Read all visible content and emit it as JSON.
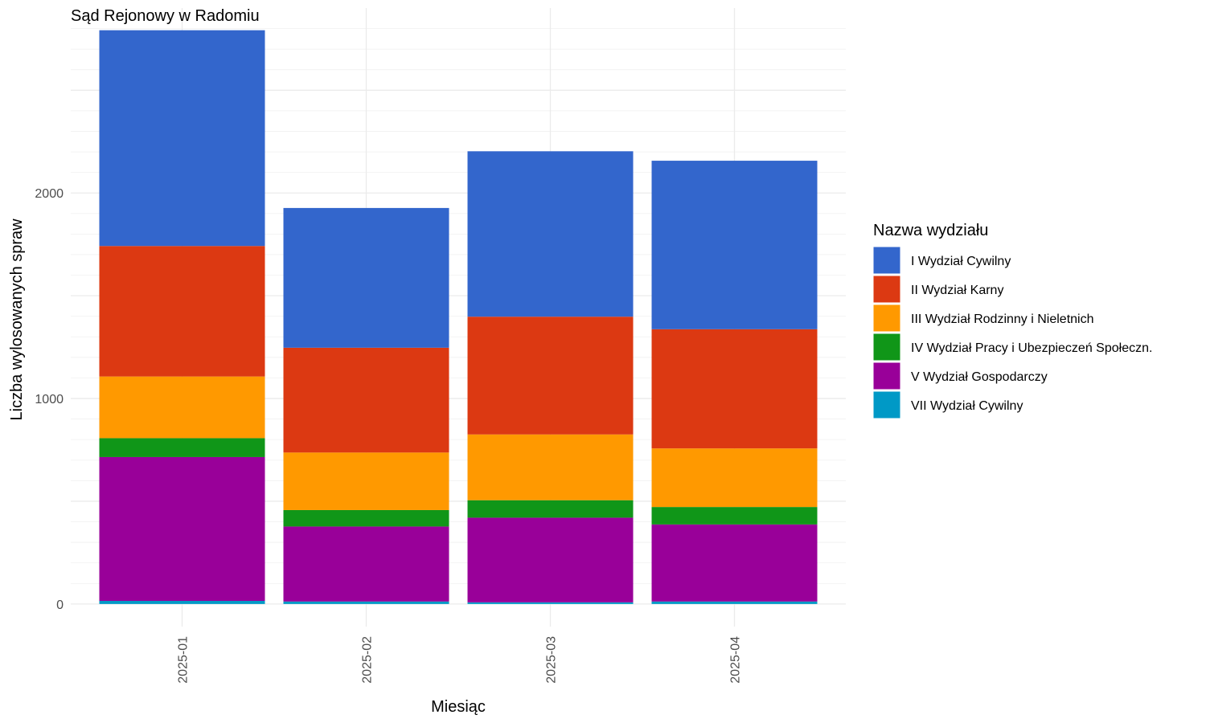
{
  "chart_data": {
    "type": "bar",
    "stacked": true,
    "title": "Sąd Rejonowy w Radomiu",
    "xlabel": "Miesiąc",
    "ylabel": "Liczba wylosowanych spraw",
    "categories": [
      "2025-01",
      "2025-02",
      "2025-03",
      "2025-04"
    ],
    "yticks": [
      "0",
      "1000",
      "2000"
    ],
    "ylim": [
      -110,
      2900
    ],
    "grid": true,
    "legend_title": "Nazwa wydziału",
    "legend_position": "right",
    "series": [
      {
        "name": "VII Wydział Cywilny",
        "color": "#0099C6",
        "values": [
          15,
          12,
          8,
          12
        ]
      },
      {
        "name": "V Wydział Gospodarczy",
        "color": "#990099",
        "values": [
          700,
          365,
          412,
          375
        ]
      },
      {
        "name": "IV Wydział Pracy i Ubezpieczeń Społeczn.",
        "color": "#109618",
        "values": [
          92,
          80,
          85,
          85
        ]
      },
      {
        "name": "III Wydział Rodzinny i Nieletnich",
        "color": "#FF9900",
        "values": [
          300,
          280,
          320,
          285
        ]
      },
      {
        "name": "II Wydział Karny",
        "color": "#DC3912",
        "values": [
          635,
          510,
          573,
          580
        ]
      },
      {
        "name": "I Wydział Cywilny",
        "color": "#3366CC",
        "values": [
          1050,
          680,
          805,
          820
        ]
      }
    ],
    "legend_order": [
      "I Wydział Cywilny",
      "II Wydział Karny",
      "III Wydział Rodzinny i Nieletnich",
      "IV Wydział Pracy i Ubezpieczeń Społeczn.",
      "V Wydział Gospodarczy",
      "VII Wydział Cywilny"
    ]
  }
}
